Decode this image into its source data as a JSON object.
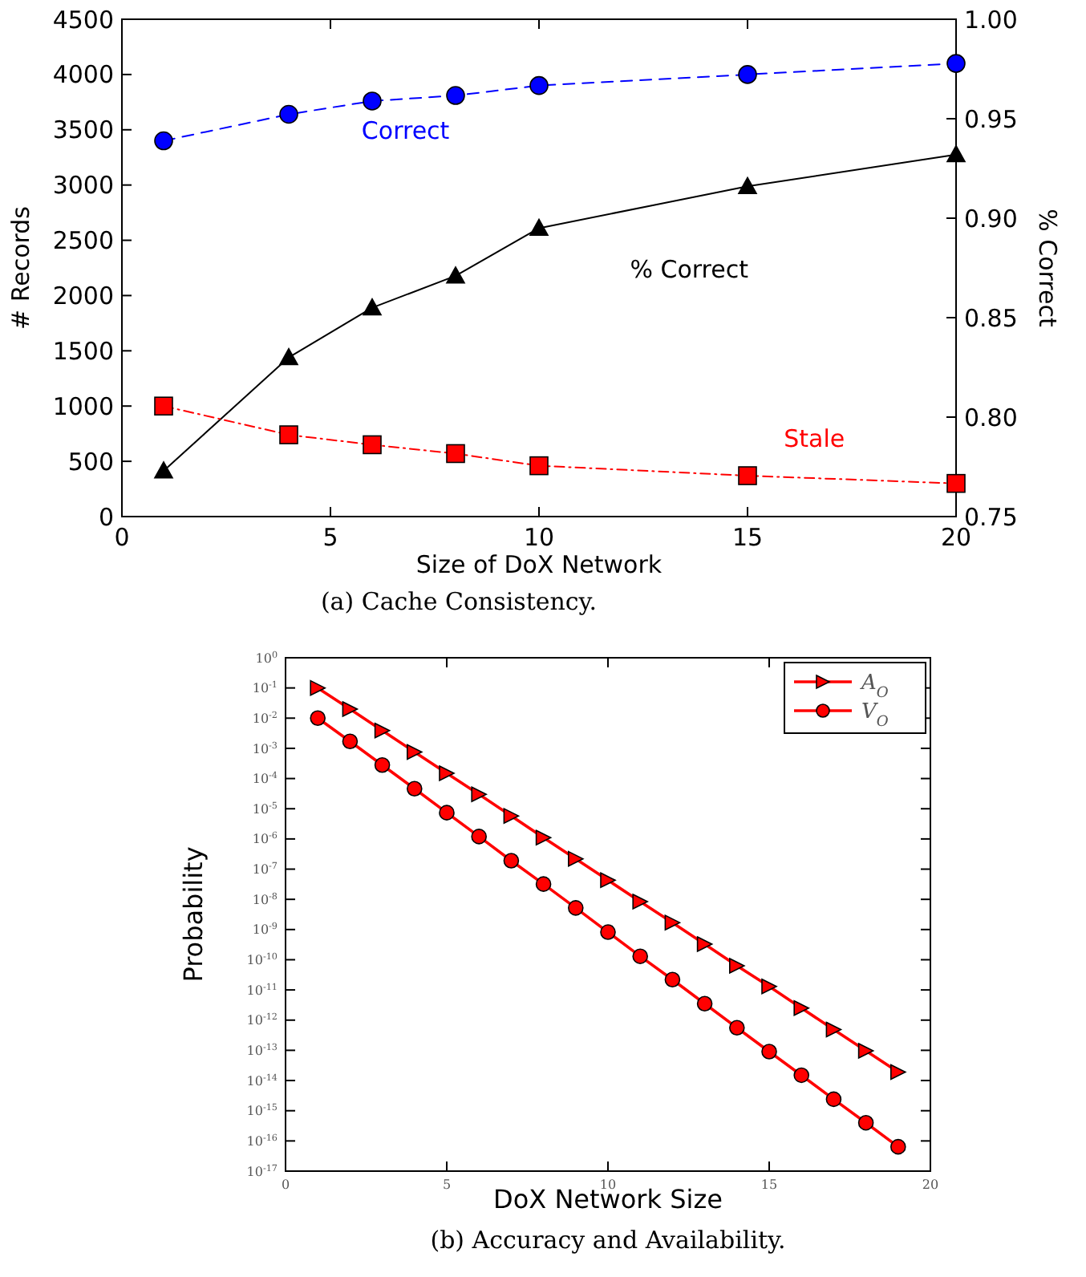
{
  "chart_data": [
    {
      "type": "line",
      "xlabel": "Size of DoX Network",
      "ylabel": "# Records",
      "y2label": "% Correct",
      "x": [
        1,
        4,
        6,
        8,
        10,
        15,
        20
      ],
      "xlim": [
        0,
        20
      ],
      "xticks": [
        0,
        5,
        10,
        15,
        20
      ],
      "ylim": [
        0,
        4500
      ],
      "yticks": [
        0,
        500,
        1000,
        1500,
        2000,
        2500,
        3000,
        3500,
        4000,
        4500
      ],
      "y2lim": [
        0.75,
        1.0
      ],
      "y2ticks": [
        {
          "value": 0.75,
          "label": "0.75"
        },
        {
          "value": 0.8,
          "label": "0.80"
        },
        {
          "value": 0.85,
          "label": "0.85"
        },
        {
          "value": 0.9,
          "label": "0.90"
        },
        {
          "value": 0.95,
          "label": "0.95"
        },
        {
          "value": 1.0,
          "label": "1.00"
        }
      ],
      "series": [
        {
          "name": "Correct",
          "color": "#0000ff",
          "marker": "circle",
          "line_style": "dashed",
          "values": [
            3400,
            3640,
            3760,
            3810,
            3900,
            4000,
            4100
          ]
        },
        {
          "name": "% Correct",
          "color": "#000000",
          "marker": "triangle",
          "line_style": "solid",
          "axis": "y2",
          "values": [
            0.773,
            0.83,
            0.855,
            0.871,
            0.895,
            0.916,
            0.932
          ]
        },
        {
          "name": "Stale",
          "color": "#ff0000",
          "marker": "square",
          "line_style": "dashed",
          "values": [
            1000,
            740,
            650,
            570,
            460,
            370,
            300
          ]
        }
      ],
      "annotations": [
        "(a) Cache Consistency."
      ]
    },
    {
      "type": "line",
      "xlabel": "DoX Network Size",
      "ylabel": "Probability",
      "log": "y",
      "legend": "top right",
      "x": [
        1,
        2,
        3,
        4,
        5,
        6,
        7,
        8,
        9,
        10,
        11,
        12,
        13,
        14,
        15,
        16,
        17,
        18,
        19
      ],
      "xlim": [
        0,
        20
      ],
      "xticks": [
        0,
        5,
        10,
        15,
        20
      ],
      "ylim": [
        1e-17,
        1
      ],
      "yticks": [
        {
          "value": 1e-17,
          "label": "10$^{-17}$"
        },
        {
          "value": 1e-16,
          "label": "10$^{-16}$"
        },
        {
          "value": 1e-15,
          "label": "10$^{-15}$"
        },
        {
          "value": 1e-14,
          "label": "10$^{-14}$"
        },
        {
          "value": 1e-13,
          "label": "10$^{-13}$"
        },
        {
          "value": 1e-12,
          "label": "10$^{-12}$"
        },
        {
          "value": 1e-11,
          "label": "10$^{-11}$"
        },
        {
          "value": 1e-10,
          "label": "10$^{-10}$"
        },
        {
          "value": 1e-09,
          "label": "10$^{-9}$"
        },
        {
          "value": 1e-08,
          "label": "10$^{-8}$"
        },
        {
          "value": 1e-07,
          "label": "10$^{-7}$"
        },
        {
          "value": 1e-06,
          "label": "10$^{-6}$"
        },
        {
          "value": 1e-05,
          "label": "10$^{-5}$"
        },
        {
          "value": 0.0001,
          "label": "10$^{-4}$"
        },
        {
          "value": 0.001,
          "label": "10$^{-3}$"
        },
        {
          "value": 0.01,
          "label": "10$^{-2}$"
        },
        {
          "value": 0.1,
          "label": "10$^{-1}$"
        },
        {
          "value": 1,
          "label": "10$^{0}$"
        }
      ],
      "series": [
        {
          "name": "A$_{O}$",
          "color": "#ff0000",
          "marker": "triangle",
          "line_style": "solid",
          "values": [
            0.1,
            0.02,
            0.0039,
            0.00076,
            0.00015,
            3e-05,
            5.8e-06,
            1.1e-06,
            2.2e-07,
            4.3e-08,
            8.4e-09,
            1.7e-09,
            3.3e-10,
            6.3e-11,
            1.3e-11,
            2.5e-12,
            4.9e-13,
            9.6e-14,
            1.9e-14
          ]
        },
        {
          "name": "V$_{O}$",
          "color": "#ff0000",
          "marker": "circle",
          "line_style": "solid",
          "values": [
            0.01,
            0.0017,
            0.00028,
            4.6e-05,
            7.4e-06,
            1.2e-06,
            1.9e-07,
            3.2e-08,
            5.2e-09,
            8.2e-10,
            1.3e-10,
            2.2e-11,
            3.5e-12,
            5.6e-13,
            9.1e-14,
            1.5e-14,
            2.4e-15,
            4e-16,
            6.4e-17
          ]
        }
      ],
      "annotations": [
        "(b) Accuracy and Availability."
      ]
    }
  ]
}
